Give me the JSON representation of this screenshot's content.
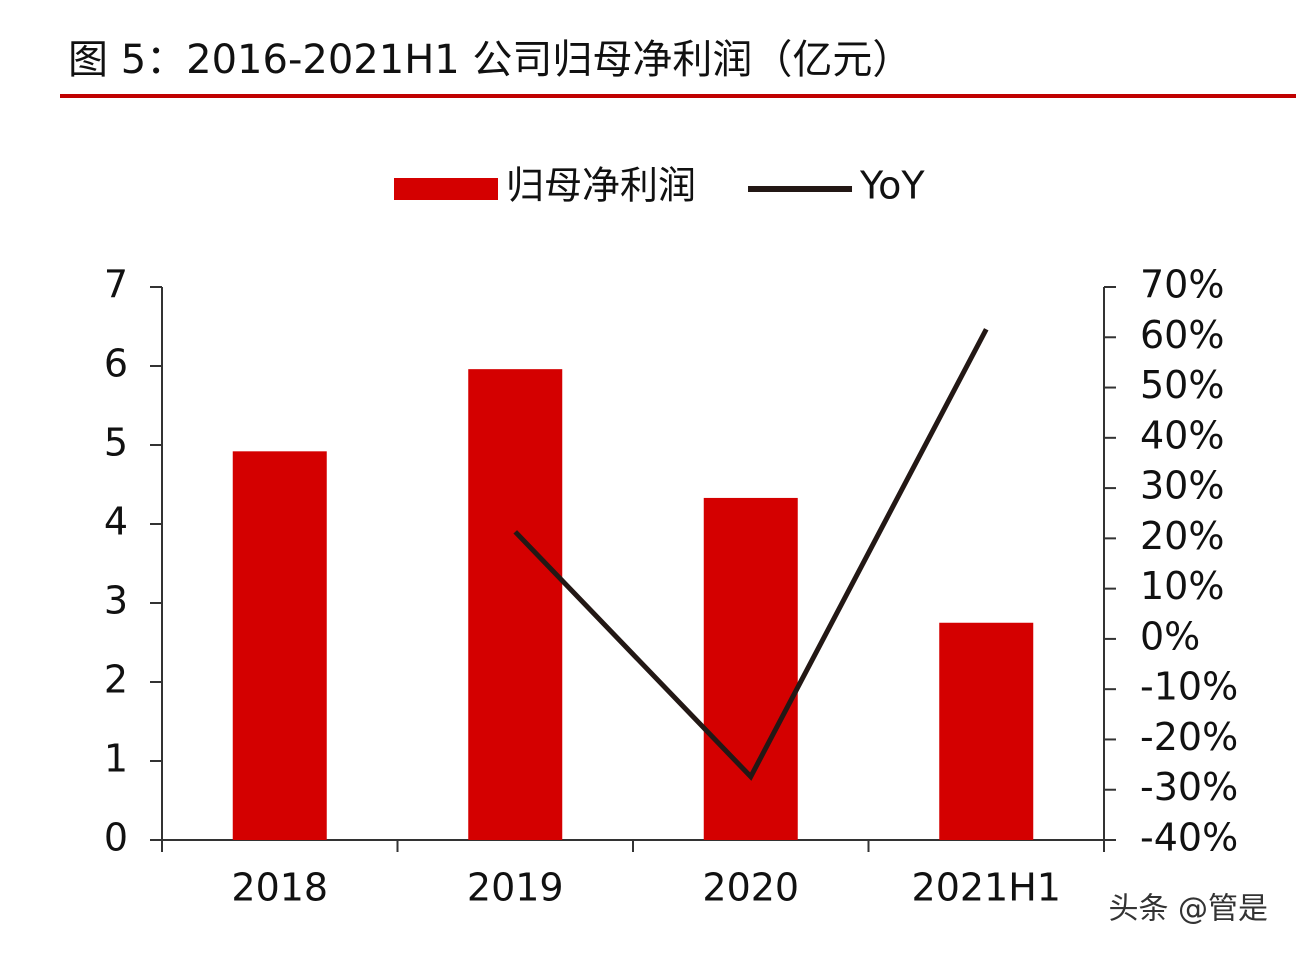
{
  "chart_data": {
    "type": "bar_line",
    "title": "图 5：2016-2021H1 公司归母净利润（亿元）",
    "watermark": "头条 @管是",
    "categories": [
      "2018",
      "2019",
      "2020",
      "2021H1"
    ],
    "series": [
      {
        "name": "归母净利润",
        "type": "bar",
        "color": "#d40000",
        "values": [
          4.92,
          5.96,
          4.33,
          2.75
        ]
      },
      {
        "name": "YoY",
        "type": "line",
        "axis": "y2",
        "color": "#231815",
        "values": [
          null,
          21.3,
          -27.4,
          61.6
        ]
      }
    ],
    "ylim": [
      0,
      7
    ],
    "yticks": [
      0,
      1,
      2,
      3,
      4,
      5,
      6,
      7
    ],
    "y2lim": [
      -40,
      70
    ],
    "y2ticks": [
      {
        "value": -40,
        "label": "-40%"
      },
      {
        "value": -30,
        "label": "-30%"
      },
      {
        "value": -20,
        "label": "-20%"
      },
      {
        "value": -10,
        "label": "-10%"
      },
      {
        "value": 0,
        "label": "0%"
      },
      {
        "value": 10,
        "label": "10%"
      },
      {
        "value": 20,
        "label": "20%"
      },
      {
        "value": 30,
        "label": "30%"
      },
      {
        "value": 40,
        "label": "40%"
      },
      {
        "value": 50,
        "label": "50%"
      },
      {
        "value": 60,
        "label": "60%"
      },
      {
        "value": 70,
        "label": "70%"
      }
    ],
    "legend": "top",
    "grid": false
  }
}
